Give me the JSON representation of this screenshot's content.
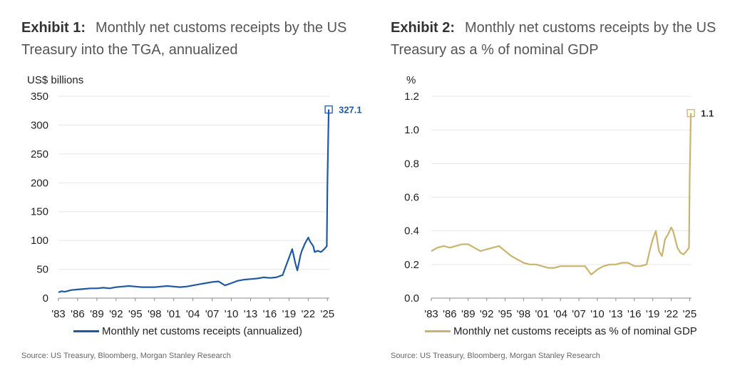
{
  "chart_data": [
    {
      "type": "line",
      "exhibit_label": "Exhibit 1:",
      "title": "Monthly net customs receipts by the US Treasury into the TGA, annualized",
      "ylabel": "US$ billions",
      "ylim": [
        0,
        350
      ],
      "yticks": [
        "0",
        "50",
        "100",
        "150",
        "200",
        "250",
        "300",
        "350"
      ],
      "xticks": [
        "'83",
        "'86",
        "'89",
        "'92",
        "'95",
        "'98",
        "'01",
        "'04",
        "'07",
        "'10",
        "'13",
        "'16",
        "'19",
        "'22",
        "'25"
      ],
      "xlim": [
        1983,
        2025.3
      ],
      "series": [
        {
          "name": "Monthly net customs receipts (annualized)",
          "color": "#1f5aa0",
          "points": [
            [
              1983,
              10
            ],
            [
              1983.5,
              12
            ],
            [
              1984,
              11
            ],
            [
              1985,
              14
            ],
            [
              1986,
              15
            ],
            [
              1987,
              16
            ],
            [
              1988,
              17
            ],
            [
              1989,
              17
            ],
            [
              1990,
              18
            ],
            [
              1991,
              17
            ],
            [
              1992,
              19
            ],
            [
              1993,
              20
            ],
            [
              1994,
              21
            ],
            [
              1995,
              20
            ],
            [
              1996,
              19
            ],
            [
              1997,
              19
            ],
            [
              1998,
              19
            ],
            [
              1999,
              20
            ],
            [
              2000,
              21
            ],
            [
              2001,
              20
            ],
            [
              2002,
              19
            ],
            [
              2003,
              20
            ],
            [
              2004,
              22
            ],
            [
              2005,
              24
            ],
            [
              2006,
              26
            ],
            [
              2007,
              28
            ],
            [
              2008,
              29
            ],
            [
              2009,
              22
            ],
            [
              2010,
              26
            ],
            [
              2011,
              30
            ],
            [
              2012,
              32
            ],
            [
              2013,
              33
            ],
            [
              2014,
              34
            ],
            [
              2015,
              36
            ],
            [
              2016,
              35
            ],
            [
              2017,
              36
            ],
            [
              2018,
              40
            ],
            [
              2018.5,
              55
            ],
            [
              2019,
              70
            ],
            [
              2019.5,
              85
            ],
            [
              2020,
              60
            ],
            [
              2020.3,
              48
            ],
            [
              2020.8,
              75
            ],
            [
              2021,
              82
            ],
            [
              2021.5,
              95
            ],
            [
              2022,
              105
            ],
            [
              2022.3,
              98
            ],
            [
              2022.8,
              90
            ],
            [
              2023,
              80
            ],
            [
              2023.5,
              82
            ],
            [
              2024,
              80
            ],
            [
              2024.5,
              85
            ],
            [
              2024.9,
              90
            ],
            [
              2025,
              200
            ],
            [
              2025.2,
              327.1
            ]
          ]
        }
      ],
      "end_label": "327.1",
      "legend_position": "bottom-center",
      "source": "Source: US Treasury, Bloomberg, Morgan Stanley Research"
    },
    {
      "type": "line",
      "exhibit_label": "Exhibit 2:",
      "title": "Monthly net customs receipts by the US Treasury as a % of nominal GDP",
      "ylabel": "%",
      "ylim": [
        0,
        1.2
      ],
      "yticks": [
        "0.0",
        "0.2",
        "0.4",
        "0.6",
        "0.8",
        "1.0",
        "1.2"
      ],
      "xticks": [
        "'83",
        "'86",
        "'89",
        "'92",
        "'95",
        "'98",
        "'01",
        "'04",
        "'07",
        "'10",
        "'13",
        "'16",
        "'19",
        "'22",
        "'25"
      ],
      "xlim": [
        1983,
        2025.3
      ],
      "series": [
        {
          "name": "Monthly net customs receipts as % of nominal GDP",
          "color": "#c9b46e",
          "points": [
            [
              1983,
              0.28
            ],
            [
              1984,
              0.3
            ],
            [
              1985,
              0.31
            ],
            [
              1986,
              0.3
            ],
            [
              1987,
              0.31
            ],
            [
              1988,
              0.32
            ],
            [
              1989,
              0.32
            ],
            [
              1990,
              0.3
            ],
            [
              1991,
              0.28
            ],
            [
              1992,
              0.29
            ],
            [
              1993,
              0.3
            ],
            [
              1994,
              0.31
            ],
            [
              1995,
              0.28
            ],
            [
              1996,
              0.25
            ],
            [
              1997,
              0.23
            ],
            [
              1998,
              0.21
            ],
            [
              1999,
              0.2
            ],
            [
              2000,
              0.2
            ],
            [
              2001,
              0.19
            ],
            [
              2002,
              0.18
            ],
            [
              2003,
              0.18
            ],
            [
              2004,
              0.19
            ],
            [
              2005,
              0.19
            ],
            [
              2006,
              0.19
            ],
            [
              2007,
              0.19
            ],
            [
              2008,
              0.19
            ],
            [
              2009,
              0.14
            ],
            [
              2010,
              0.17
            ],
            [
              2011,
              0.19
            ],
            [
              2012,
              0.2
            ],
            [
              2013,
              0.2
            ],
            [
              2014,
              0.21
            ],
            [
              2015,
              0.21
            ],
            [
              2016,
              0.19
            ],
            [
              2017,
              0.19
            ],
            [
              2018,
              0.2
            ],
            [
              2018.5,
              0.28
            ],
            [
              2019,
              0.35
            ],
            [
              2019.5,
              0.4
            ],
            [
              2020,
              0.28
            ],
            [
              2020.5,
              0.25
            ],
            [
              2021,
              0.35
            ],
            [
              2021.5,
              0.38
            ],
            [
              2022,
              0.42
            ],
            [
              2022.3,
              0.4
            ],
            [
              2022.8,
              0.33
            ],
            [
              2023,
              0.3
            ],
            [
              2023.5,
              0.27
            ],
            [
              2024,
              0.26
            ],
            [
              2024.5,
              0.28
            ],
            [
              2024.9,
              0.3
            ],
            [
              2025,
              0.7
            ],
            [
              2025.2,
              1.1
            ]
          ]
        }
      ],
      "end_label": "1.1",
      "legend_position": "bottom-center",
      "source": "Source: US Treasury, Bloomberg, Morgan Stanley Research"
    }
  ]
}
